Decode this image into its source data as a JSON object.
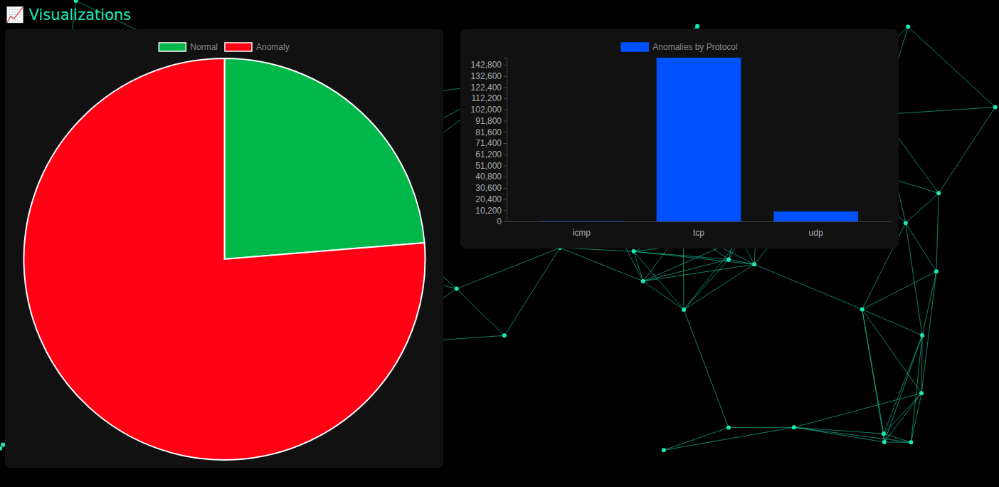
{
  "heading": "📈 Visualizations",
  "chart_data": [
    {
      "type": "pie",
      "categories": [
        "Normal",
        "Anomaly"
      ],
      "values": [
        23.7,
        76.3
      ],
      "colors": [
        "#00b84a",
        "#ff0014"
      ],
      "legend": "top"
    },
    {
      "type": "bar",
      "categories": [
        "icmp",
        "tcp",
        "udp"
      ],
      "series": [
        {
          "name": "Anomalies by Protocol",
          "color": "#0051ff",
          "values": [
            300,
            149300,
            9100
          ]
        }
      ],
      "ylim": [
        0,
        149300
      ],
      "yticks": [
        0,
        {
          "value": 10200,
          "label": "10,200"
        },
        {
          "value": 20400,
          "label": "20,400"
        },
        {
          "value": 30600,
          "label": "30,600"
        },
        {
          "value": 40800,
          "label": "40,800"
        },
        {
          "value": 51000,
          "label": "51,000"
        },
        {
          "value": 61200,
          "label": "61,200"
        },
        {
          "value": 71400,
          "label": "71,400"
        },
        {
          "value": 81600,
          "label": "81,600"
        },
        {
          "value": 91800,
          "label": "91,800"
        },
        {
          "value": 102000,
          "label": "102,000"
        },
        {
          "value": 112200,
          "label": "112,200"
        },
        {
          "value": 122400,
          "label": "122,400"
        },
        {
          "value": 132600,
          "label": "132,600"
        },
        {
          "value": 142800,
          "label": "142,800"
        }
      ],
      "grid": false,
      "legend": "top"
    }
  ]
}
